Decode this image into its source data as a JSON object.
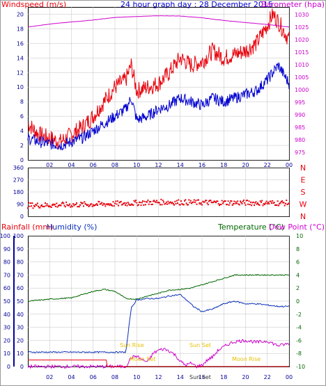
{
  "header": {
    "wind_label": "Windspeed (m/s)",
    "title": "24 hour graph day : 28 December 2015",
    "baro_label": "Barometer (hpa)",
    "rain_label": "Rainfall (mm)",
    "humidity_label": "Humidity (%)",
    "temp_label": "Temperature (°C)",
    "dew_label": "Dew Point (°C)"
  },
  "colors": {
    "wind_gust": "#e8000b",
    "wind_avg": "#0000d0",
    "barometer": "#cc00cc",
    "direction": "#e8000b",
    "temperature": "#006600",
    "humidity": "#0a2fb8",
    "dewpoint": "#cc00cc",
    "rainfall": "#e8000b",
    "axis_left_blue": "#000099",
    "axis_right_green": "#006600",
    "annotation": "#e6c000",
    "grid": "#c0c0c0"
  },
  "annotations": [
    "Sun Rise",
    "Moon Set",
    "Sun Set",
    "Moon Rise",
    "Sun Set"
  ],
  "chart_data": [
    {
      "type": "line",
      "title": "24 hour graph day : 28 December 2015",
      "x_ticks": [
        "02",
        "04",
        "06",
        "08",
        "10",
        "12",
        "14",
        "16",
        "18",
        "20",
        "22",
        "00"
      ],
      "xlim": [
        0,
        24
      ],
      "ylabel_left": "Windspeed (m/s)",
      "ylim_left": [
        0,
        21
      ],
      "yticks_left": [
        0,
        2,
        4,
        6,
        8,
        10,
        12,
        14,
        16,
        18,
        20
      ],
      "ylabel_right": "Barometer (hpa)",
      "ylim_right": [
        972,
        1033
      ],
      "yticks_right": [
        975,
        980,
        985,
        990,
        995,
        1000,
        1005,
        1010,
        1015,
        1020,
        1025,
        1030
      ],
      "grid": true,
      "series": [
        {
          "name": "Windspeed (m/s)",
          "role": "gust",
          "axis": "left",
          "x": [
            0,
            1,
            2,
            3,
            4,
            5,
            6,
            7,
            8,
            9,
            9.5,
            10,
            11,
            12,
            13,
            14,
            15,
            16,
            17,
            18,
            19,
            20,
            21,
            22,
            22.5,
            23,
            24
          ],
          "values": [
            5,
            3.5,
            3,
            2.5,
            3.5,
            4.5,
            6,
            8,
            10,
            11,
            13,
            9.5,
            10,
            10.5,
            12,
            14,
            13,
            13.5,
            15,
            14,
            14.5,
            15,
            16,
            18.5,
            20,
            19,
            16.5
          ]
        },
        {
          "name": "Windspeed (m/s)",
          "role": "average",
          "axis": "left",
          "x": [
            0,
            1,
            2,
            3,
            4,
            5,
            6,
            7,
            8,
            9,
            9.5,
            10,
            11,
            12,
            13,
            14,
            15,
            16,
            17,
            18,
            19,
            20,
            21,
            22,
            22.5,
            23,
            24
          ],
          "values": [
            3,
            2.5,
            2.2,
            2,
            2.5,
            3,
            4,
            5,
            6,
            7,
            8.5,
            5.5,
            6,
            7,
            7.5,
            8.5,
            8,
            7.5,
            8.5,
            8,
            8.5,
            9,
            9.5,
            11,
            12,
            13,
            10.5
          ]
        },
        {
          "name": "Barometer (hpa)",
          "axis": "right",
          "x": [
            0,
            2,
            4,
            6,
            8,
            10,
            12,
            14,
            16,
            18,
            20,
            22,
            24
          ],
          "values": [
            1025,
            1026.2,
            1027,
            1027.8,
            1028.8,
            1029.2,
            1029.5,
            1029.4,
            1028.7,
            1027.6,
            1026.8,
            1026,
            1025
          ]
        }
      ]
    },
    {
      "type": "scatter",
      "title": "",
      "xlim": [
        0,
        24
      ],
      "ylabel_left": "",
      "ylim": [
        0,
        360
      ],
      "yticks": [
        0,
        90,
        180,
        270,
        360
      ],
      "yticklabels_right": [
        "N",
        "W",
        "S",
        "E",
        "N"
      ],
      "grid": true,
      "series": [
        {
          "name": "",
          "x_range": [
            0,
            24
          ],
          "values_trend": [
            [
              0,
              80
            ],
            [
              4,
              85
            ],
            [
              8,
              92
            ],
            [
              12,
              105
            ],
            [
              16,
              102
            ],
            [
              20,
              100
            ],
            [
              24,
              98
            ]
          ]
        }
      ]
    },
    {
      "type": "line",
      "title": "",
      "x_ticks": [
        "02",
        "04",
        "06",
        "08",
        "10",
        "12",
        "14",
        "16",
        "18",
        "20",
        "22",
        "00"
      ],
      "xlim": [
        0,
        24
      ],
      "ylabel_left": "Rainfall (mm) / Humidity (%)",
      "ylim_left": [
        0,
        100
      ],
      "yticks_left": [
        0,
        10,
        20,
        30,
        40,
        50,
        60,
        70,
        80,
        90,
        100
      ],
      "ylabel_right": "Temperature (°C) / Dew Point (°C)",
      "ylim_right": [
        -10,
        10
      ],
      "yticks_right": [
        10,
        8,
        6,
        4,
        2,
        0,
        -2,
        -4,
        -6,
        -8,
        -10
      ],
      "grid": true,
      "series": [
        {
          "name": "Temperature (°C)",
          "axis": "right",
          "x": [
            0,
            2,
            4,
            5,
            6,
            7,
            8,
            9,
            10,
            11,
            12,
            13,
            14,
            15,
            16,
            17,
            18,
            19,
            20,
            21,
            22,
            23,
            24
          ],
          "values": [
            0,
            0.3,
            0.5,
            1,
            1.5,
            1.8,
            1.5,
            0.4,
            0.3,
            0.8,
            1.2,
            1.7,
            1.8,
            2,
            2.5,
            3,
            3.5,
            4,
            4,
            4,
            4,
            4,
            4
          ]
        },
        {
          "name": "Humidity (%)",
          "axis": "left",
          "x": [
            0,
            9,
            9.5,
            10,
            11,
            12,
            13,
            14,
            14.7,
            15.2,
            16,
            17,
            18,
            19,
            20,
            21,
            22,
            23,
            24
          ],
          "values": [
            11,
            11,
            45,
            51,
            52,
            52,
            54,
            55,
            50,
            46,
            42,
            44,
            48,
            50,
            48,
            48,
            47,
            46,
            46
          ]
        },
        {
          "name": "Dew Point (°C)",
          "axis": "right",
          "x": [
            0,
            9,
            9.5,
            10,
            10.5,
            11,
            11.5,
            12,
            12.5,
            13,
            13.5,
            14,
            14.5,
            15,
            15.5,
            16,
            16.5,
            17,
            17.5,
            18,
            18.5,
            19,
            20,
            21,
            22,
            23,
            24
          ],
          "values": [
            -10,
            -10,
            -8.6,
            -8.4,
            -9,
            -9.3,
            -8,
            -7.5,
            -7.3,
            -7.6,
            -8.2,
            -9.2,
            -9.8,
            -9.5,
            -10,
            -9.8,
            -9,
            -8.5,
            -7.5,
            -7,
            -6.5,
            -6.2,
            -6,
            -6.3,
            -6.1,
            -6.8,
            -6.5
          ]
        },
        {
          "name": "Rainfall (mm)",
          "axis": "left",
          "x": [
            0,
            7.2,
            7.3,
            24
          ],
          "values": [
            5,
            5,
            0,
            0
          ]
        }
      ]
    }
  ]
}
